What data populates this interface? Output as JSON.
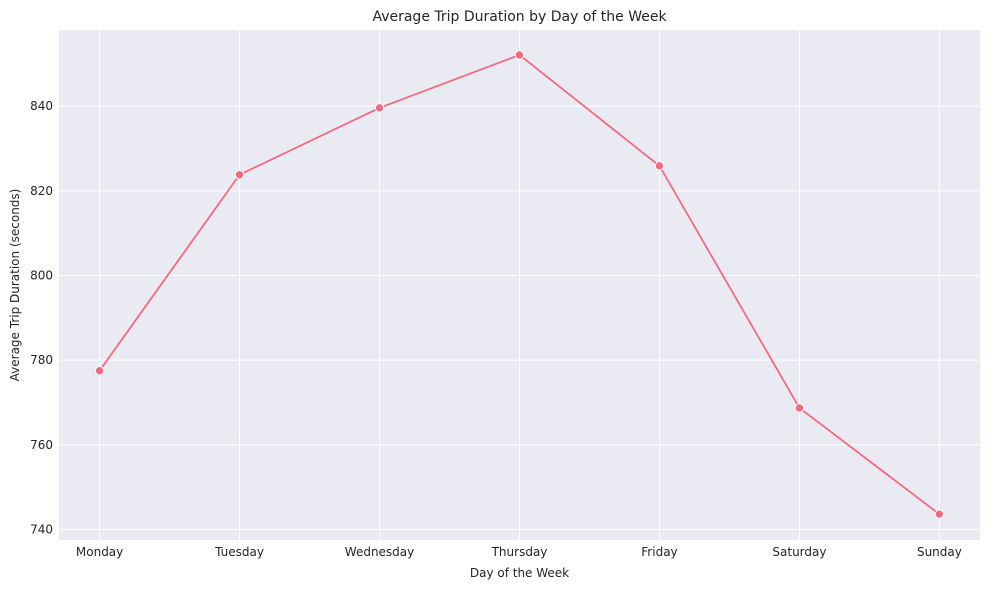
{
  "chart_data": {
    "type": "line",
    "title": "Average Trip Duration by Day of the Week",
    "xlabel": "Day of the Week",
    "ylabel": "Average Trip Duration (seconds)",
    "categories": [
      "Monday",
      "Tuesday",
      "Wednesday",
      "Thursday",
      "Friday",
      "Saturday",
      "Sunday"
    ],
    "series": [
      {
        "values": [
          777.5,
          823.8,
          839.6,
          852.1,
          825.9,
          768.7,
          743.6
        ],
        "color": "#f5697f",
        "marker": "circle"
      }
    ],
    "yticks": [
      740,
      760,
      780,
      800,
      820,
      840
    ],
    "ylim": [
      737.5,
      858
    ],
    "grid": true,
    "legend": "none",
    "background_color": "#eaeaf2",
    "grid_color": "#ffffff"
  }
}
